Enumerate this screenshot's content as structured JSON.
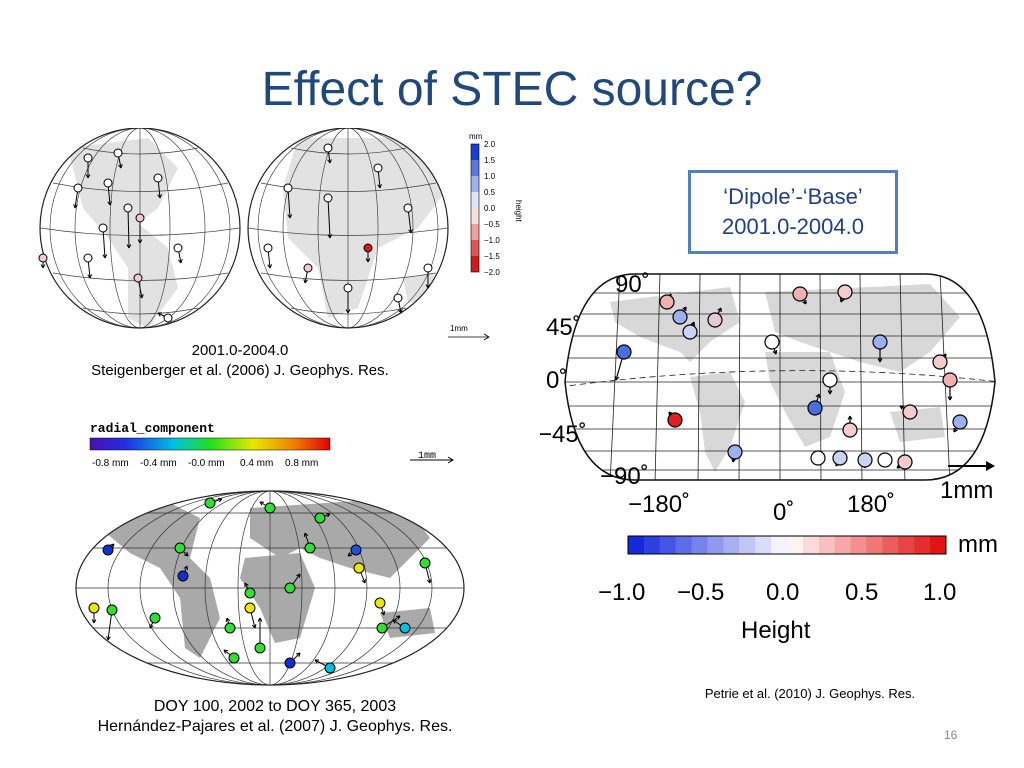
{
  "slide": {
    "title": "Effect of STEC source?",
    "page_number": "16"
  },
  "panel_top_left": {
    "colorbar_unit": "mm",
    "colorbar_label": "height",
    "colorbar_ticks": [
      "2.0",
      "1.5",
      "1.0",
      "0.5",
      "0.0",
      "−0.5",
      "−1.0",
      "−1.5",
      "−2.0"
    ],
    "scale_label": "1mm",
    "caption_line1": "2001.0-2004.0",
    "caption_line2": "Steigenberger et al. (2006) J. Geophys. Res."
  },
  "panel_bottom_left": {
    "colorbar_title": "radial_component",
    "colorbar_ticks": [
      "-0.8 mm",
      "-0.4 mm",
      "-0.0 mm",
      "0.4 mm",
      "0.8 mm"
    ],
    "scale_label": "1mm",
    "caption_line1": "DOY 100, 2002 to DOY 365, 2003",
    "caption_line2": "Hernández-Pajares et al. (2007) J. Geophys. Res."
  },
  "panel_right": {
    "box_line1": "‘Dipole’-‘Base’",
    "box_line2": "2001.0-2004.0",
    "lat_labels": [
      "90˚",
      "45˚",
      "0˚",
      "−45˚",
      "−90˚"
    ],
    "lon_labels": [
      "−180˚",
      "0˚",
      "180˚"
    ],
    "scale_label": "1mm",
    "colorbar_unit": "mm",
    "colorbar_ticks": [
      "−1.0",
      "−0.5",
      "0.0",
      "0.5",
      "1.0"
    ],
    "colorbar_title": "Height",
    "caption": "Petrie et al. (2010) J. Geophys. Res."
  }
}
